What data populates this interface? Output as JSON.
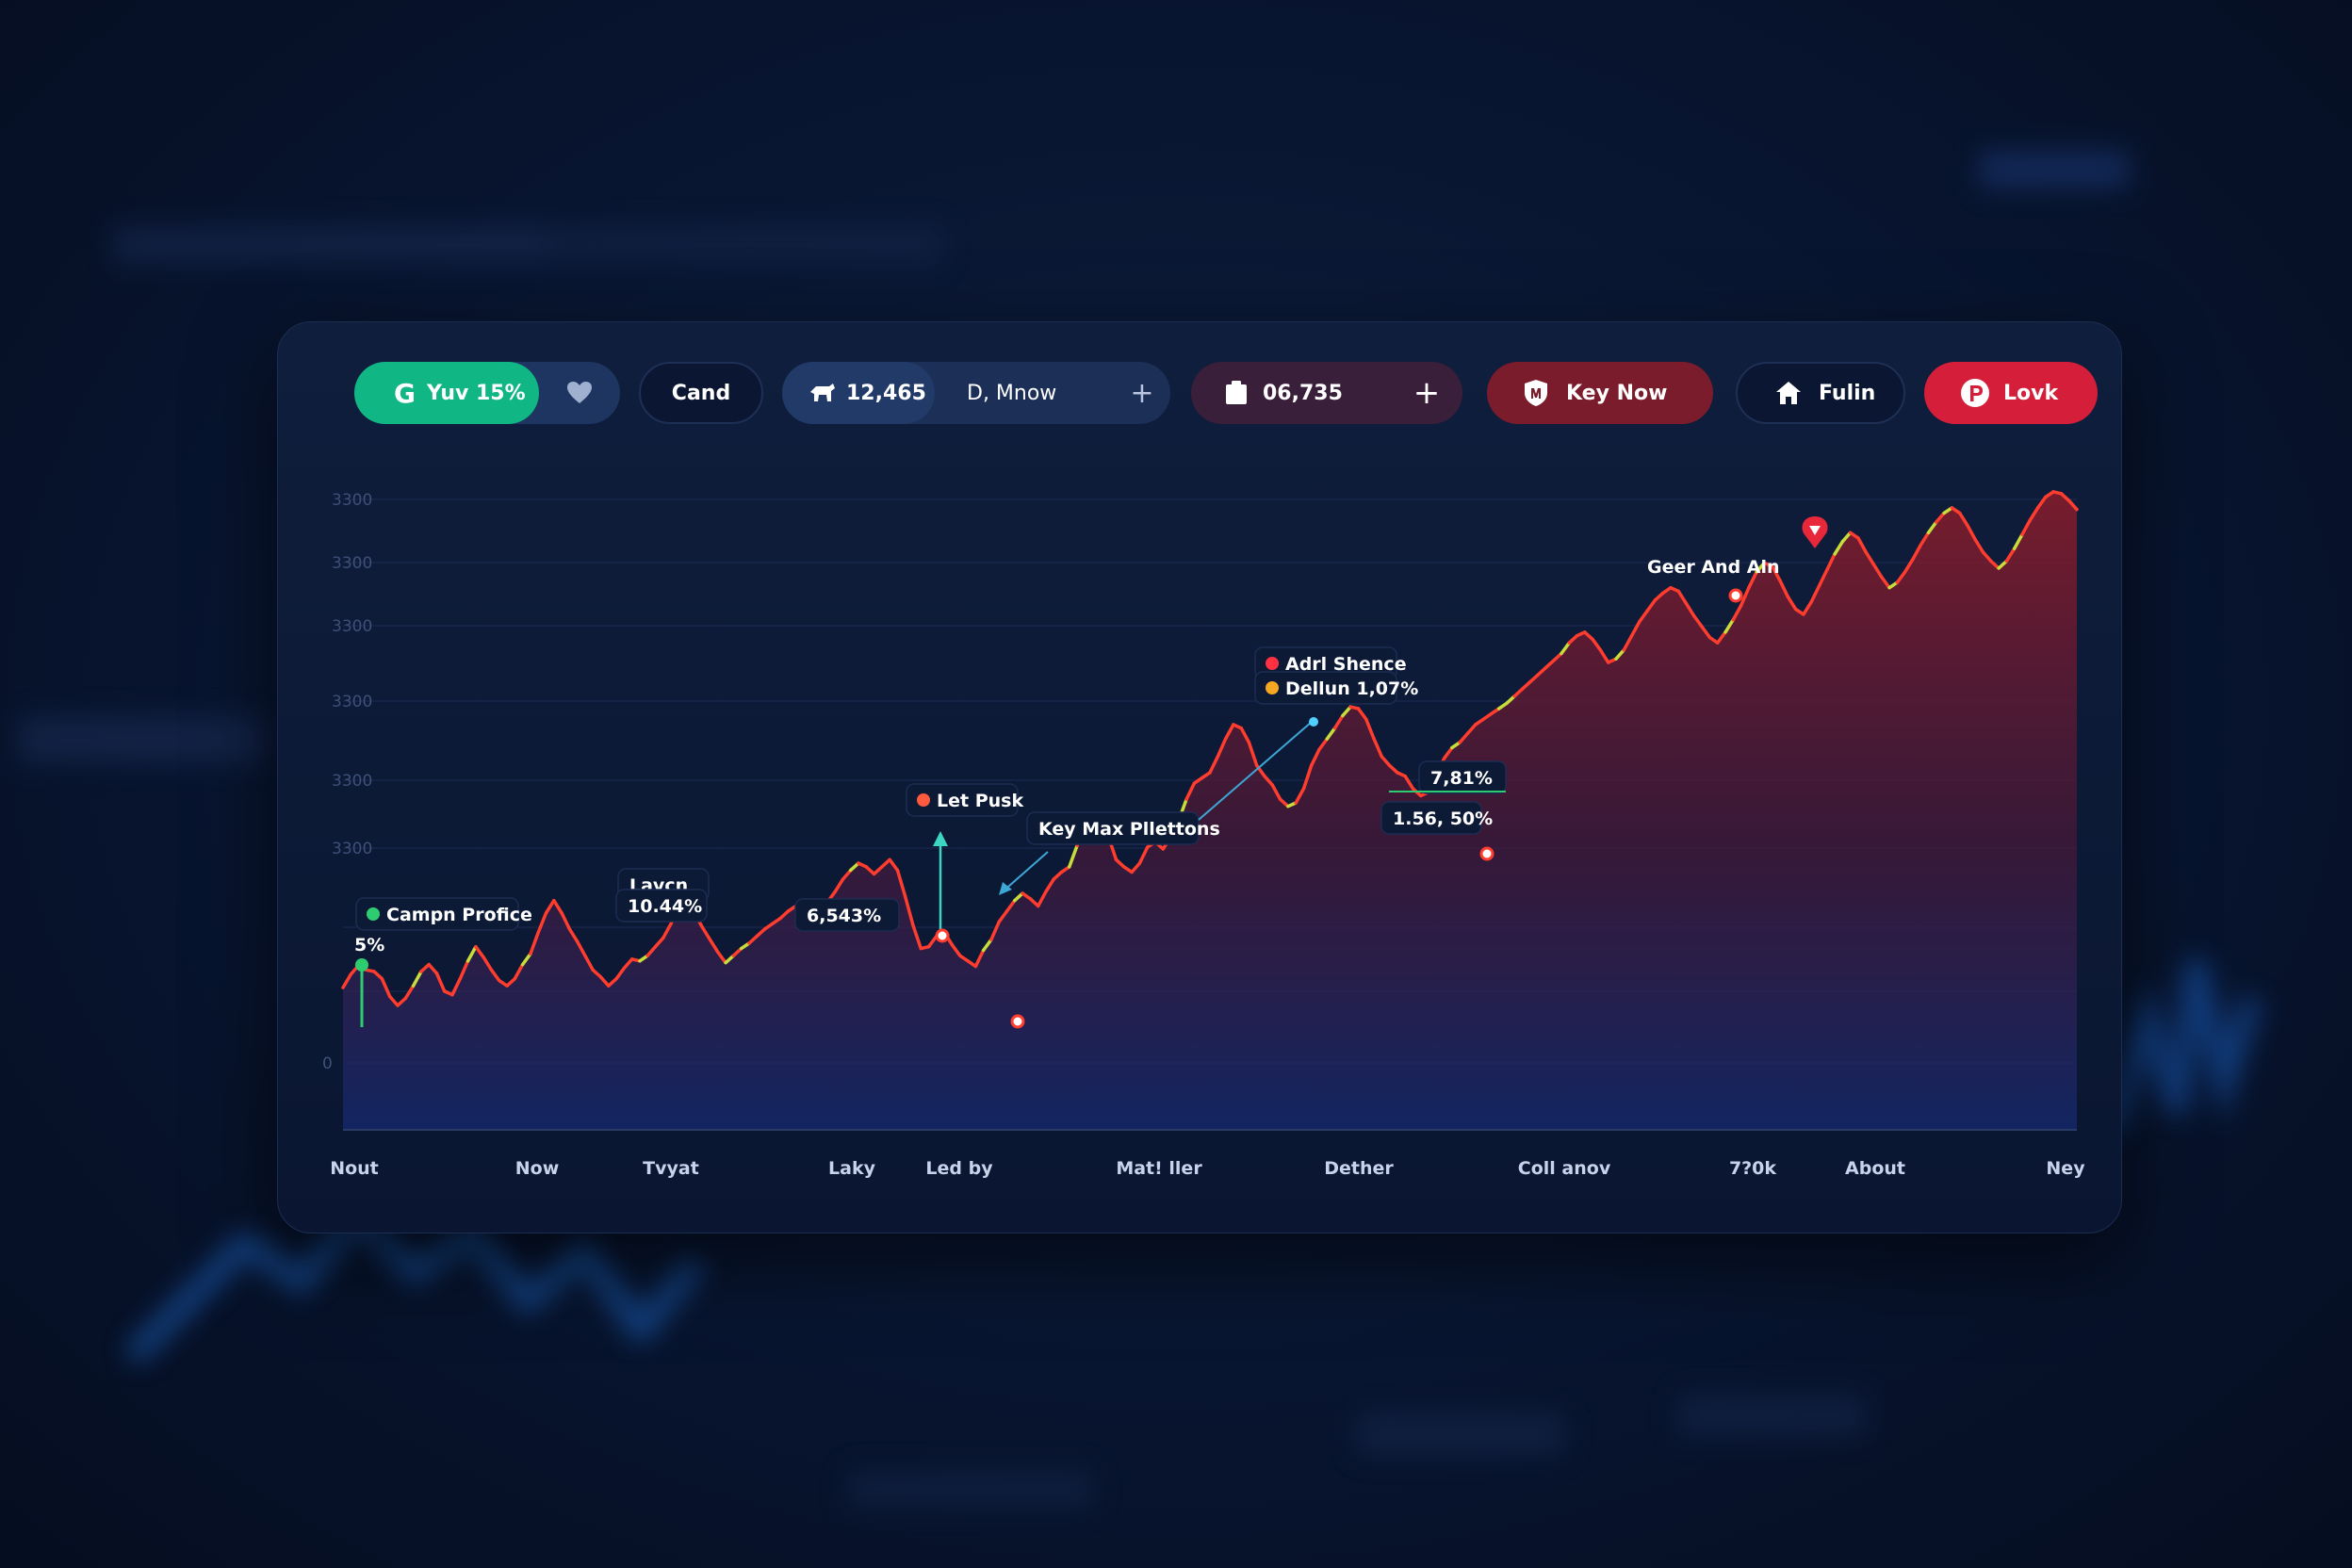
{
  "toolbar": {
    "group1": {
      "label": "Yuv 15%",
      "icon": "g-logo-icon",
      "secondary_icon": "heart-icon"
    },
    "cand": {
      "label": "Cand"
    },
    "group2": {
      "value": "12,465",
      "label": "D, Mnow",
      "icon": "bull-icon",
      "action_icon": "plus-icon"
    },
    "group3": {
      "value": "06,735",
      "icon": "clipboard-icon",
      "action_icon": "plus-icon"
    },
    "key_now": {
      "label": "Key Now",
      "icon": "shield-icon"
    },
    "fulin": {
      "label": "Fulin",
      "icon": "home-icon"
    },
    "lovk": {
      "label": "Lovk",
      "icon": "p-circle-icon"
    }
  },
  "colors": {
    "green_accent": "#11b685",
    "red_accent": "#d51f3a",
    "maroon_button": "#7a1c2b",
    "panel": "#0c1a36",
    "line_red": "#ff3d2e",
    "line_yellow": "#c8dc3c"
  },
  "chart_data": {
    "type": "line",
    "y_tick_labels": [
      "3300",
      "3300",
      "3300",
      "3300",
      "3300",
      "3300",
      "0"
    ],
    "x_tick_labels": [
      "Nout",
      "Now",
      "Tvyat",
      "Laky",
      "Led by",
      "Mat! ller",
      "Dether",
      "Coll anov",
      "7?0k",
      "About",
      "Ney"
    ],
    "series": [
      {
        "values": [
          160,
          175,
          185,
          180,
          178,
          170,
          150,
          140,
          148,
          162,
          178,
          186,
          176,
          156,
          152,
          170,
          190,
          206,
          194,
          180,
          168,
          162,
          170,
          186,
          198,
          222,
          244,
          258,
          244,
          226,
          212,
          196,
          180,
          172,
          162,
          170,
          182,
          192,
          190,
          196,
          206,
          216,
          232,
          252,
          262,
          244,
          228,
          214,
          200,
          188,
          196,
          204,
          210,
          218,
          226,
          232,
          238,
          246,
          252,
          244,
          240,
          246,
          256,
          268,
          282,
          292,
          300,
          296,
          288,
          296,
          304,
          292,
          262,
          230,
          204,
          206,
          218,
          222,
          208,
          196,
          190,
          184,
          202,
          214,
          234,
          246,
          258,
          266,
          260,
          252,
          268,
          282,
          290,
          296,
          320,
          340,
          354,
          346,
          330,
          304,
          296,
          290,
          300,
          318,
          324,
          316,
          330,
          348,
          372,
          390,
          396,
          402,
          420,
          440,
          456,
          452,
          436,
          410,
          398,
          388,
          372,
          364,
          368,
          384,
          410,
          428,
          440,
          452,
          466,
          476,
          474,
          462,
          440,
          420,
          410,
          402,
          398,
          384,
          376,
          380,
          400,
          418,
          430,
          436,
          446,
          456,
          462,
          468,
          474,
          480,
          488,
          496,
          504,
          512,
          520,
          528,
          536,
          548,
          556,
          560,
          552,
          540,
          526,
          530,
          540,
          556,
          572,
          584,
          596,
          604,
          610,
          606,
          592,
          578,
          566,
          554,
          548,
          560,
          574,
          590,
          610,
          628,
          638,
          634,
          618,
          600,
          586,
          580,
          594,
          612,
          630,
          648,
          662,
          672,
          666,
          650,
          636,
          622,
          610,
          616,
          628,
          642,
          658,
          672,
          684,
          694,
          700,
          694,
          680,
          664,
          650,
          640,
          632,
          640,
          654,
          670,
          686,
          700,
          712,
          718,
          716,
          708,
          698
        ]
      }
    ],
    "annotations": [
      {
        "text": "Campn Profice",
        "dot": "#2ecc71"
      },
      {
        "text": "5%"
      },
      {
        "text": "Lavcn"
      },
      {
        "text": "10.44%"
      },
      {
        "text": "6,543%"
      },
      {
        "text": "Let Pusk",
        "dot": "#ff5a3d"
      },
      {
        "text": "Key Max Pllettons"
      },
      {
        "text": "Adrl Shence",
        "dot": "#ff3040"
      },
      {
        "text": "Dellun 1,07%",
        "dot": "#f5a623"
      },
      {
        "text": "7,81%"
      },
      {
        "text": "1.56, 50%"
      },
      {
        "text": "Geer And Aln"
      }
    ]
  }
}
